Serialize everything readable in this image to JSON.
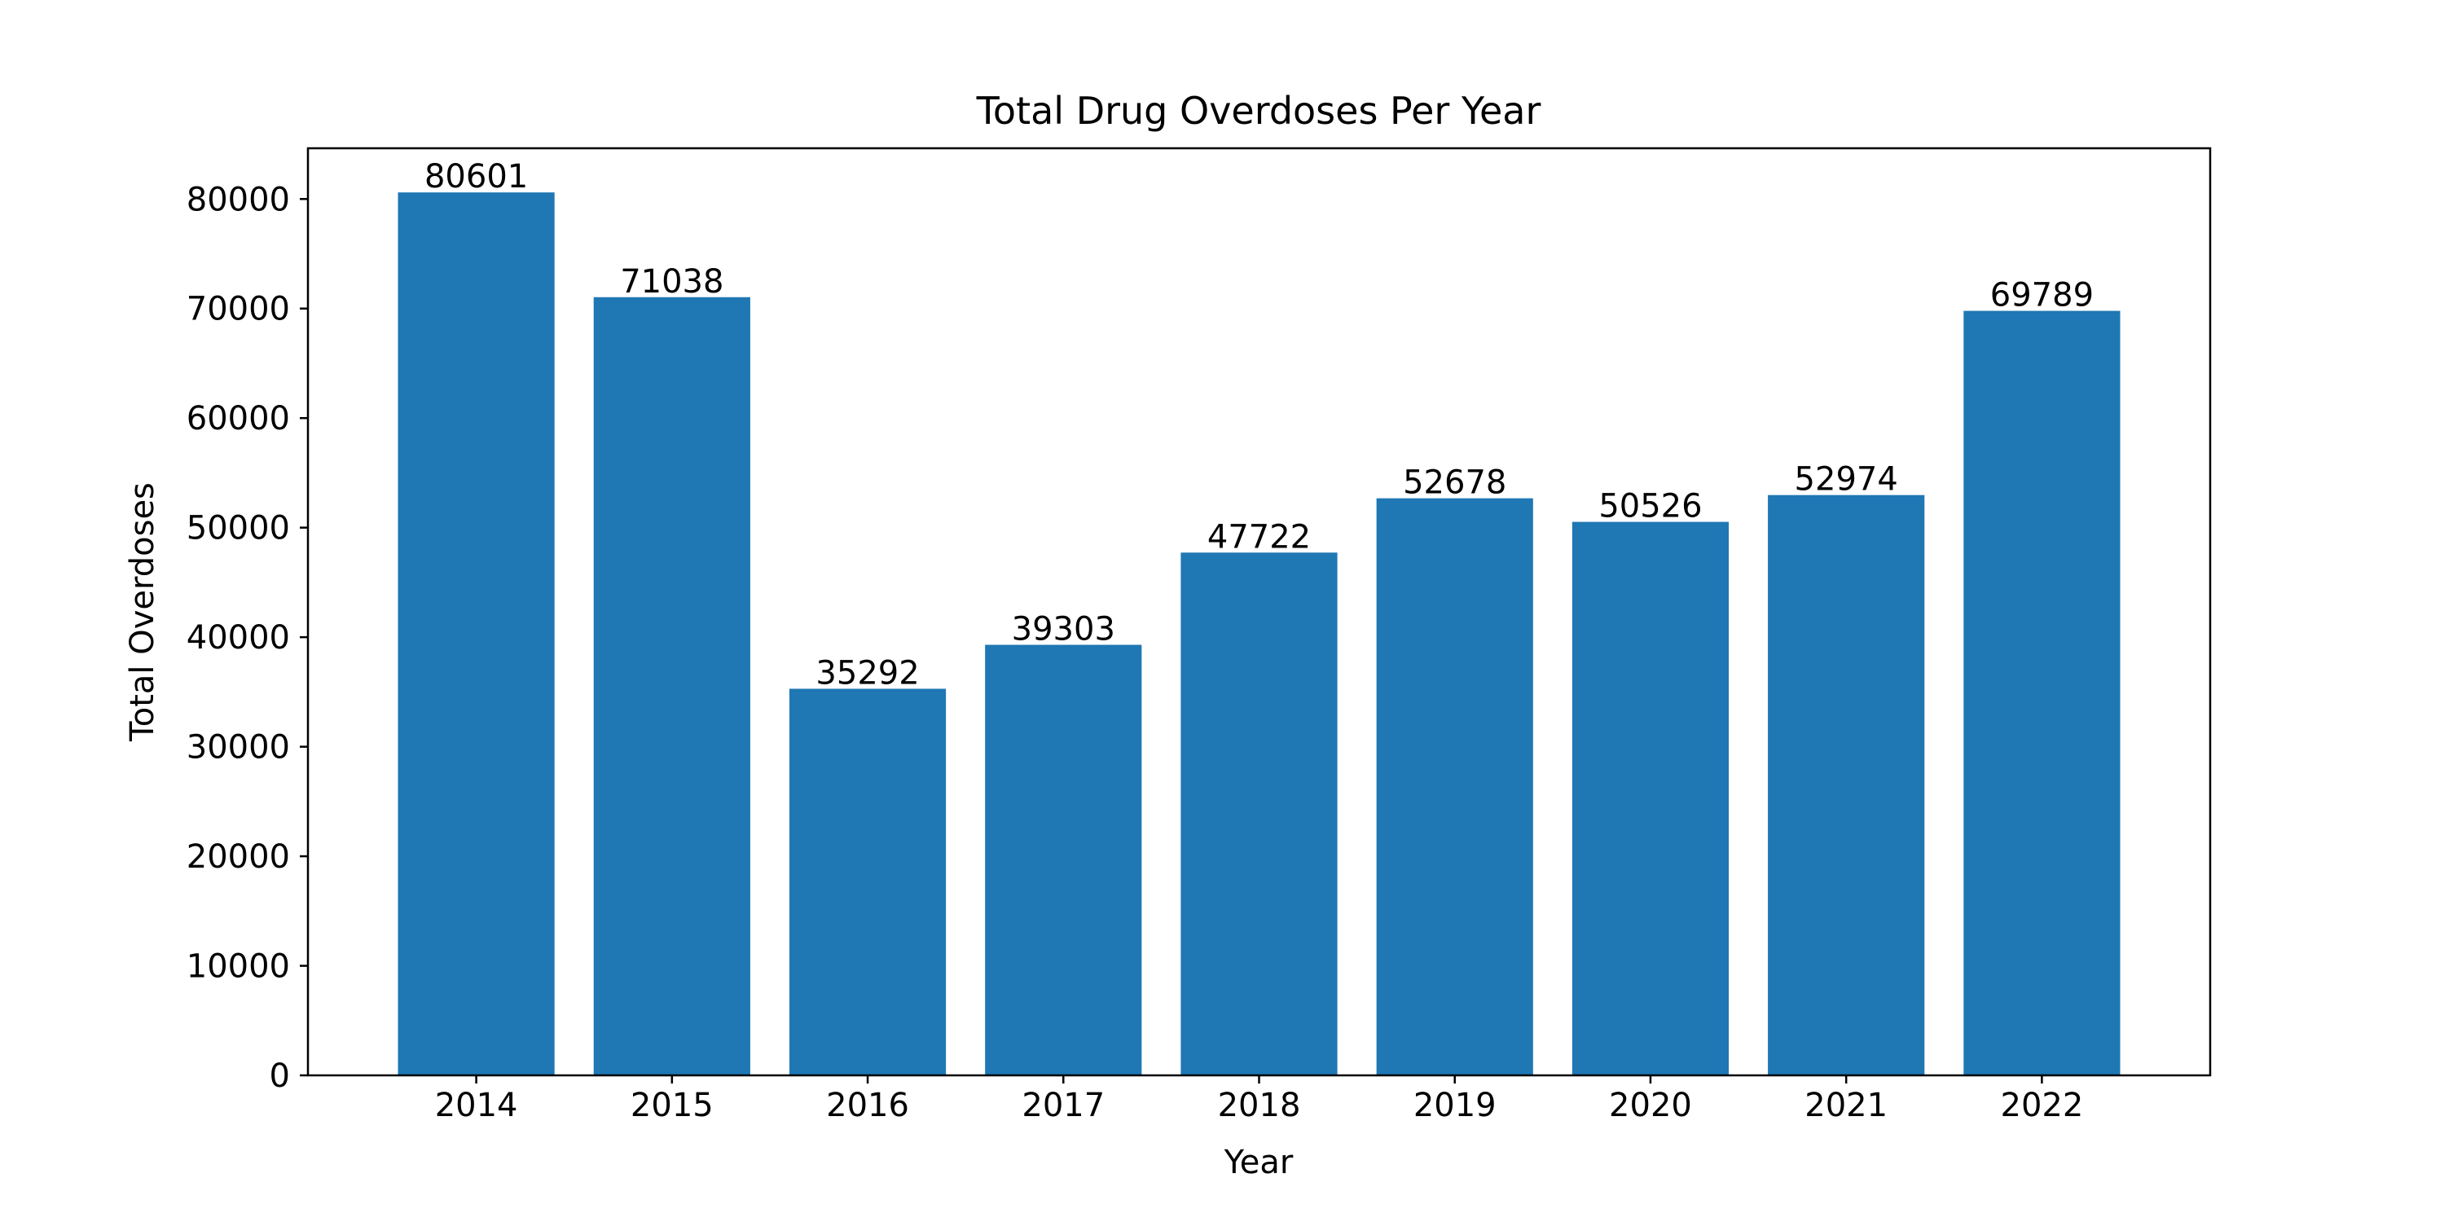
{
  "chart_data": {
    "type": "bar",
    "title": "Total Drug Overdoses Per Year",
    "xlabel": "Year",
    "ylabel": "Total Overdoses",
    "categories": [
      "2014",
      "2015",
      "2016",
      "2017",
      "2018",
      "2019",
      "2020",
      "2021",
      "2022"
    ],
    "values": [
      80601,
      71038,
      35292,
      39303,
      47722,
      52678,
      50526,
      52974,
      69789
    ],
    "data_labels": [
      "80601",
      "71038",
      "35292",
      "39303",
      "47722",
      "52678",
      "50526",
      "52974",
      "69789"
    ],
    "yticks": [
      0,
      10000,
      20000,
      30000,
      40000,
      50000,
      60000,
      70000,
      80000
    ],
    "ylim": [
      0,
      84631
    ],
    "grid": false,
    "legend": "none",
    "bar_color": "#1f77b4"
  }
}
